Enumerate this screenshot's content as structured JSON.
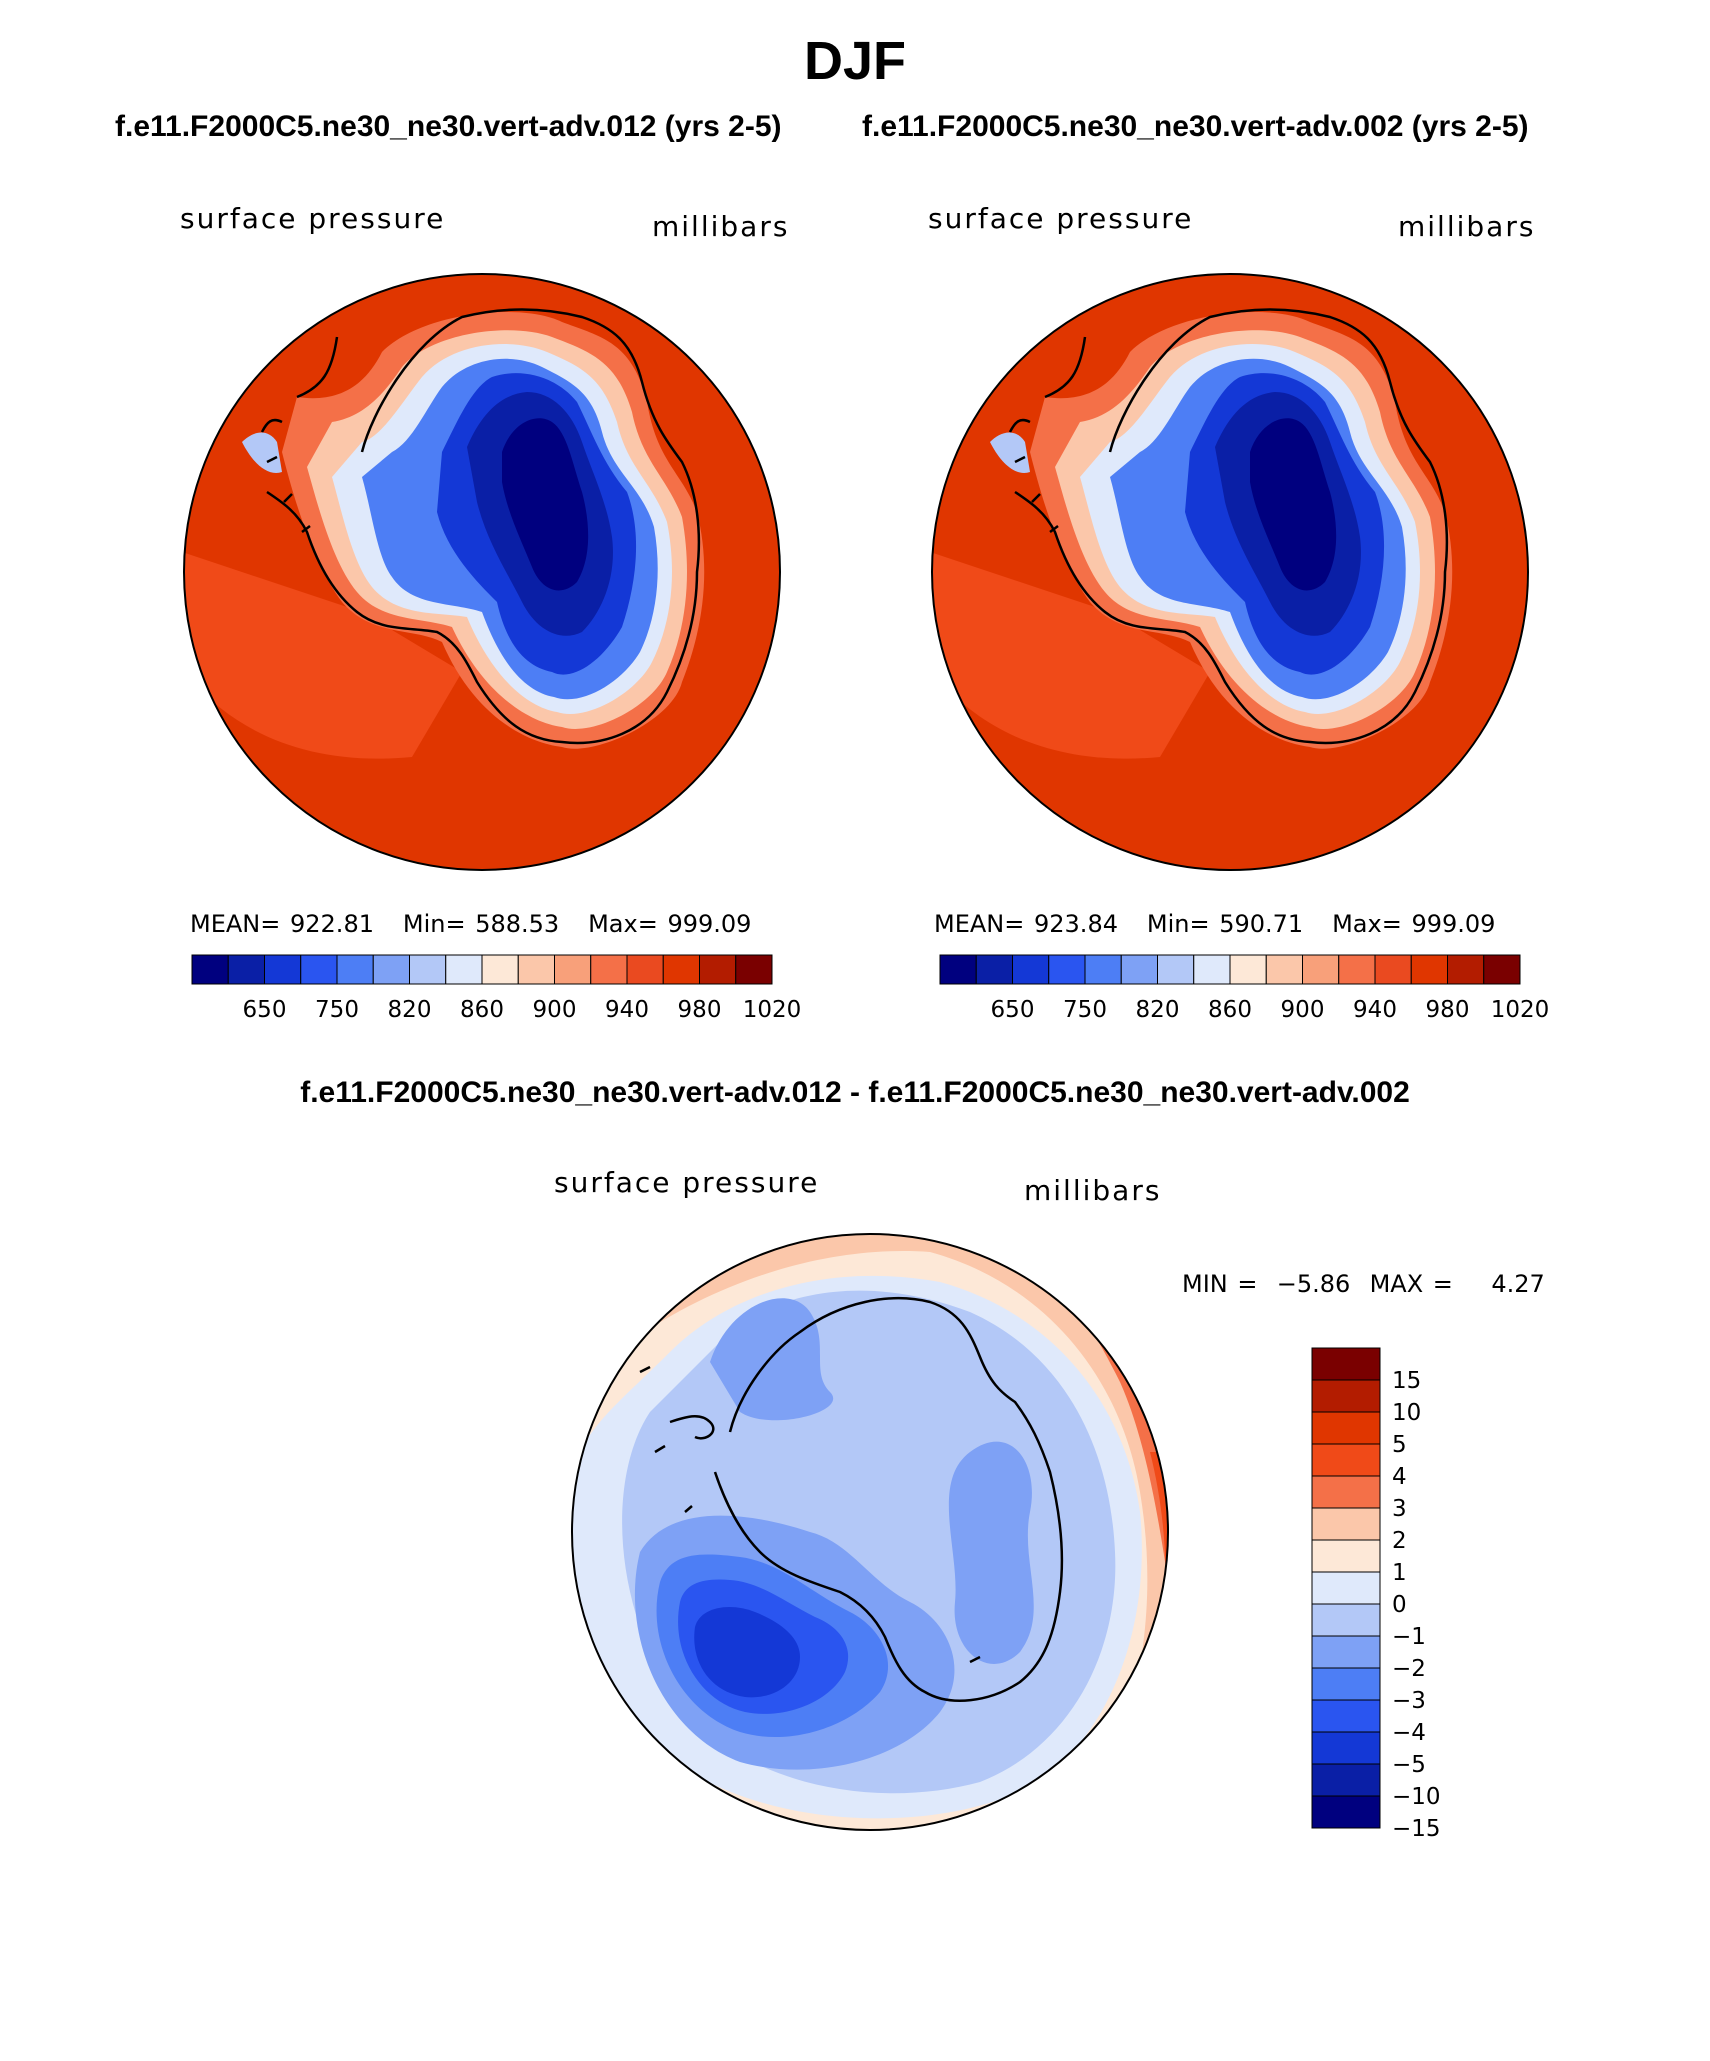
{
  "header": {
    "main_title": "DJF",
    "left_run": "f.e11.F2000C5.ne30_ne30.vert-adv.012 (yrs 2-5)",
    "right_run": "f.e11.F2000C5.ne30_ne30.vert-adv.002 (yrs 2-5)",
    "diff_title": "f.e11.F2000C5.ne30_ne30.vert-adv.012 - f.e11.F2000C5.ne30_ne30.vert-adv.002"
  },
  "colors": {
    "abs": [
      "#00007f",
      "#0a1fa6",
      "#1438d6",
      "#2a55f0",
      "#4d7ef5",
      "#7ea1f5",
      "#b3c8f7",
      "#dfe9fb",
      "#fde8d7",
      "#fbc7aa",
      "#f8a07a",
      "#f47048",
      "#ea4a20",
      "#e03600",
      "#b31c00",
      "#7a0000"
    ],
    "diff": [
      "#7a0000",
      "#b31c00",
      "#e03600",
      "#f04a18",
      "#f47048",
      "#fbc7aa",
      "#fde8d7",
      "#dfe9fb",
      "#b3c8f7",
      "#7ea1f5",
      "#4d7ef5",
      "#2a55f0",
      "#1438d6",
      "#0a1fa6",
      "#00007f"
    ]
  },
  "chart_data": [
    {
      "type": "heatmap",
      "name": "panel-left",
      "title": "f.e11.F2000C5.ne30_ne30.vert-adv.012 (yrs 2-5)",
      "left_label": "surface pressure",
      "right_label": "millibars",
      "mean_text": "MEAN=",
      "mean": "922.81",
      "min_text": "Min=",
      "min": "588.53",
      "max_text": "Max=",
      "max": "999.09",
      "colorbar_ticks": [
        "650",
        "750",
        "820",
        "860",
        "900",
        "940",
        "980",
        "1020"
      ]
    },
    {
      "type": "heatmap",
      "name": "panel-right",
      "title": "f.e11.F2000C5.ne30_ne30.vert-adv.002 (yrs 2-5)",
      "left_label": "surface pressure",
      "right_label": "millibars",
      "mean_text": "MEAN=",
      "mean": "923.84",
      "min_text": "Min=",
      "min": "590.71",
      "max_text": "Max=",
      "max": "999.09",
      "colorbar_ticks": [
        "650",
        "750",
        "820",
        "860",
        "900",
        "940",
        "980",
        "1020"
      ]
    },
    {
      "type": "heatmap",
      "name": "panel-diff",
      "title": "f.e11.F2000C5.ne30_ne30.vert-adv.012 - f.e11.F2000C5.ne30_ne30.vert-adv.002",
      "left_label": "surface pressure",
      "right_label": "millibars",
      "min_text": "MIN =",
      "min": "−5.86",
      "max_text": "MAX =",
      "max": "4.27",
      "colorbar_ticks": [
        "15",
        "10",
        "5",
        "4",
        "3",
        "2",
        "1",
        "0",
        "−1",
        "−2",
        "−3",
        "−4",
        "−5",
        "−10",
        "−15"
      ]
    }
  ]
}
